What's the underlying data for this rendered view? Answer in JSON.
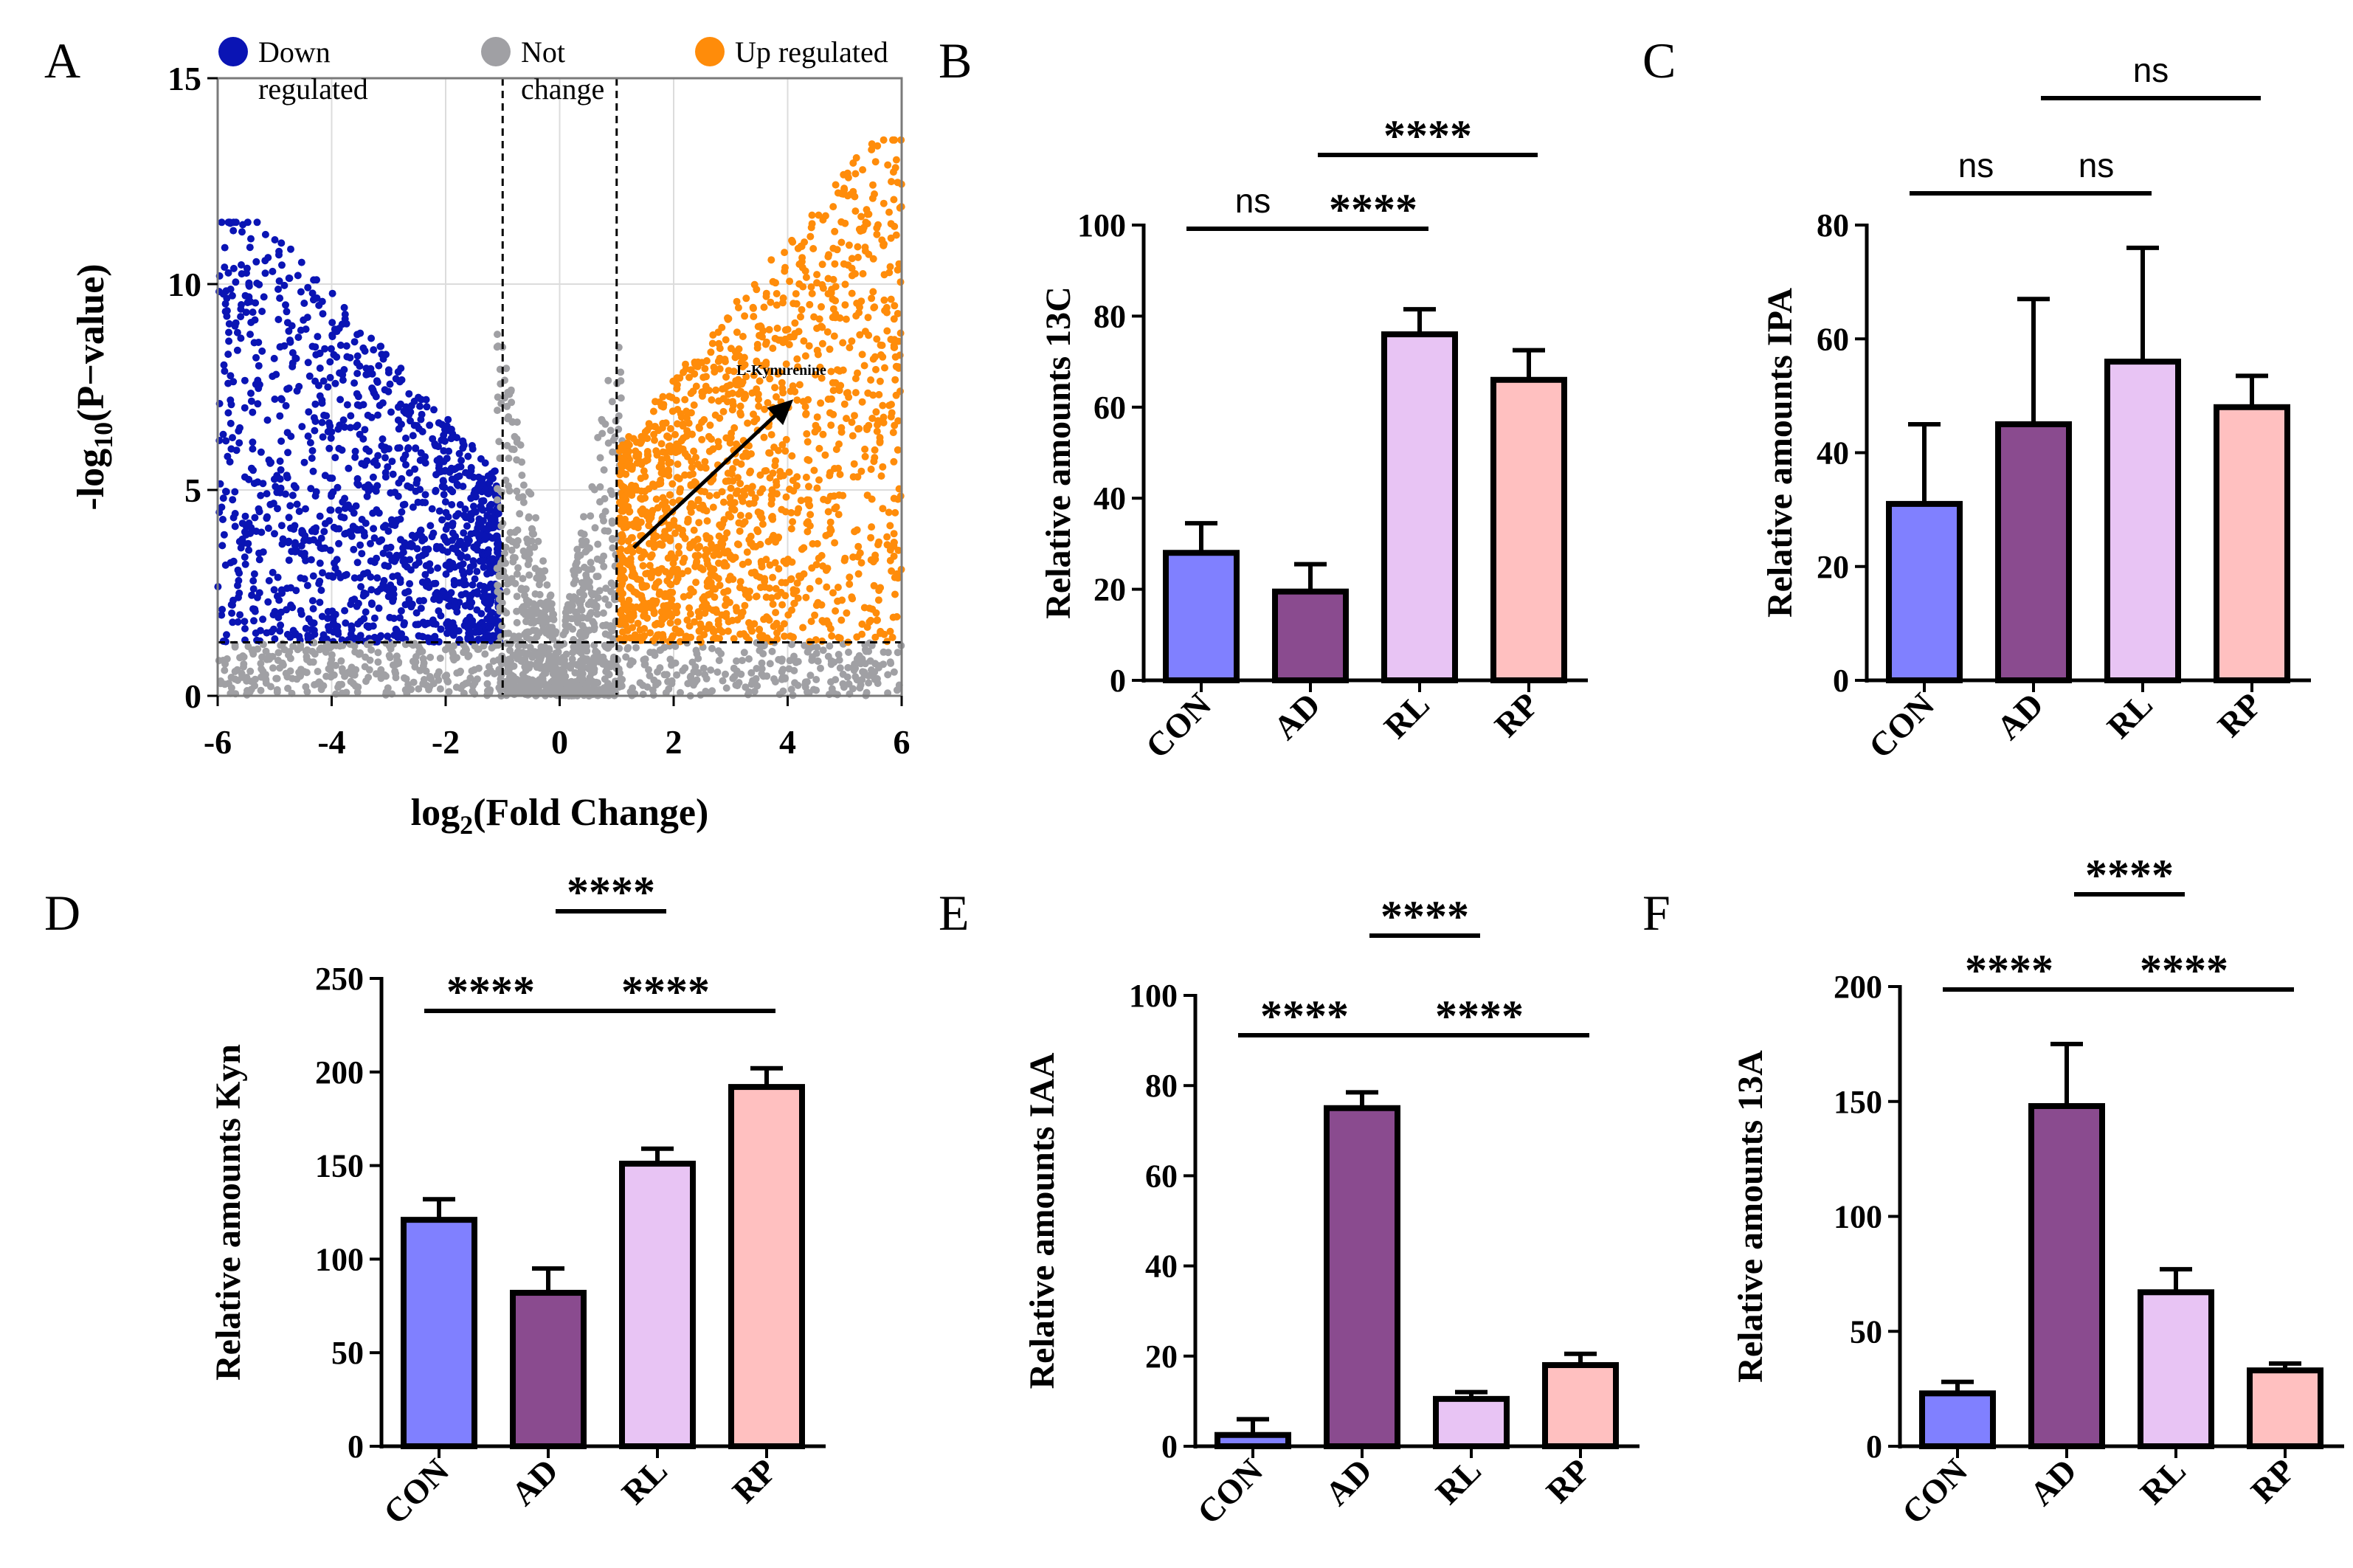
{
  "colors": {
    "down": "#0a14b4",
    "not": "#a0a0a4",
    "up": "#ff8c0a",
    "groups": [
      "#8080ff",
      "#8a4b8f",
      "#e8c4f4",
      "#ffc0c0"
    ]
  },
  "chart_data": [
    {
      "panel": "A",
      "type": "scatter",
      "title": "",
      "xlabel": "log2(Fold Change)",
      "ylabel": "-log10(P-value)",
      "xlim": [
        -6,
        6
      ],
      "ylim": [
        0,
        15
      ],
      "xticks": [
        -6,
        -4,
        -2,
        0,
        2,
        4,
        6
      ],
      "yticks": [
        0,
        5,
        10,
        15
      ],
      "fc_threshold": [
        -1,
        1
      ],
      "p_threshold": 1.3,
      "legend": [
        {
          "key": "down",
          "label1": "Down",
          "label2": "regulated"
        },
        {
          "key": "not",
          "label1": "Not",
          "label2": "change"
        },
        {
          "key": "up",
          "label1": "Up regulated",
          "label2": ""
        }
      ],
      "annotation": {
        "text": "L-Kynurenine",
        "arrow_from": [
          1.3,
          3.6
        ],
        "arrow_to": [
          4.1,
          7.2
        ],
        "text_at": [
          3.1,
          7.8
        ]
      },
      "series": [
        {
          "name": "Down regulated",
          "color_key": "down",
          "count": 1300,
          "x_range": [
            -6,
            -1
          ],
          "y_range": [
            1.3,
            11.5
          ]
        },
        {
          "name": "Not change",
          "color_key": "not",
          "count": 1400,
          "x_range": [
            -6,
            6
          ],
          "y_range": [
            0,
            9
          ]
        },
        {
          "name": "Up regulated",
          "color_key": "up",
          "count": 1500,
          "x_range": [
            1,
            6
          ],
          "y_range": [
            1.3,
            13.5
          ]
        }
      ]
    },
    {
      "panel": "B",
      "type": "bar",
      "categories": [
        "CON",
        "AD",
        "RL",
        "RP"
      ],
      "values": [
        28,
        19.5,
        76,
        66
      ],
      "errors": [
        6.5,
        6,
        5.5,
        6.5
      ],
      "ylabel": "Relative amounts 13C",
      "ylim": [
        0,
        100
      ],
      "yticks": [
        0,
        20,
        40,
        60,
        80,
        100
      ],
      "significance": [
        {
          "from": 0,
          "to": 1,
          "label": "ns",
          "level": 0
        },
        {
          "from": 1,
          "to": 2,
          "label": "****",
          "level": 0
        },
        {
          "from": 1,
          "to": 3,
          "label": "****",
          "level": 1
        }
      ]
    },
    {
      "panel": "C",
      "type": "bar",
      "categories": [
        "CON",
        "AD",
        "RL",
        "RP"
      ],
      "values": [
        31,
        45,
        56,
        48
      ],
      "errors": [
        14,
        22,
        20,
        5.5
      ],
      "ylabel": "Relative amounts IPA",
      "ylim": [
        0,
        80
      ],
      "yticks": [
        0,
        20,
        40,
        60,
        80
      ],
      "significance": [
        {
          "from": 0,
          "to": 1,
          "label": "ns",
          "level": 0
        },
        {
          "from": 1,
          "to": 2,
          "label": "ns",
          "level": 0
        },
        {
          "from": 1,
          "to": 3,
          "label": "ns",
          "level": 1
        }
      ]
    },
    {
      "panel": "D",
      "type": "bar",
      "categories": [
        "CON",
        "AD",
        "RL",
        "RP"
      ],
      "values": [
        121,
        82,
        151,
        192
      ],
      "errors": [
        11,
        13,
        8,
        10
      ],
      "ylabel": "Relative amounts Kyn",
      "ylim": [
        0,
        250
      ],
      "yticks": [
        0,
        50,
        100,
        150,
        200,
        250
      ],
      "significance": [
        {
          "from": 0,
          "to": 1,
          "label": "****",
          "level": 0
        },
        {
          "from": 1,
          "to": 3,
          "label": "****",
          "level": 0
        },
        {
          "from": 1,
          "to": 2,
          "label": "****",
          "level": 1
        }
      ]
    },
    {
      "panel": "E",
      "type": "bar",
      "categories": [
        "CON",
        "AD",
        "RL",
        "RP"
      ],
      "values": [
        2.5,
        75,
        10.5,
        18
      ],
      "errors": [
        3.5,
        3.5,
        1.5,
        2.5
      ],
      "ylabel": "Relative amounts IAA",
      "ylim": [
        0,
        100
      ],
      "yticks": [
        0,
        20,
        40,
        60,
        80,
        100
      ],
      "significance": [
        {
          "from": 0,
          "to": 1,
          "label": "****",
          "level": 0
        },
        {
          "from": 1,
          "to": 3,
          "label": "****",
          "level": 0
        },
        {
          "from": 1,
          "to": 2,
          "label": "****",
          "level": 1
        }
      ]
    },
    {
      "panel": "F",
      "type": "bar",
      "categories": [
        "CON",
        "AD",
        "RL",
        "RP"
      ],
      "values": [
        23,
        148,
        67,
        33
      ],
      "errors": [
        5,
        27,
        10,
        3
      ],
      "ylabel": "Relative amounts 13A",
      "ylim": [
        0,
        200
      ],
      "yticks": [
        0,
        50,
        100,
        150,
        200
      ],
      "significance": [
        {
          "from": 0,
          "to": 1,
          "label": "****",
          "level": 0
        },
        {
          "from": 1,
          "to": 3,
          "label": "****",
          "level": 0
        },
        {
          "from": 1,
          "to": 2,
          "label": "****",
          "level": 1
        }
      ]
    }
  ]
}
